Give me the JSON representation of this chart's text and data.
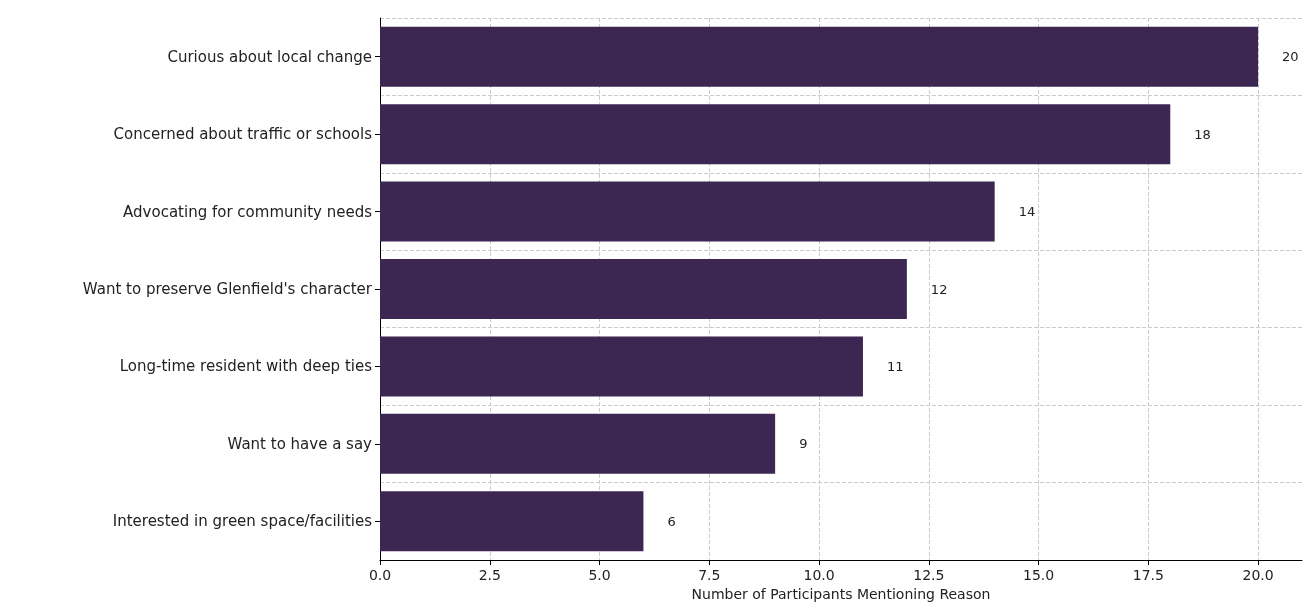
{
  "chart_data": {
    "type": "bar",
    "orientation": "horizontal",
    "xlabel": "Number of Participants Mentioning Reason",
    "categories": [
      "Curious about local change",
      "Concerned about traffic or schools",
      "Advocating for community needs",
      "Want to preserve Glenfield's character",
      "Long-time resident with deep ties",
      "Want to have a say",
      "Interested in green space/facilities"
    ],
    "values": [
      20,
      18,
      14,
      12,
      11,
      9,
      6
    ],
    "color": "#3b2752",
    "xlim": [
      0,
      21
    ],
    "xticks": [
      {
        "value": 0,
        "label": "0.0"
      },
      {
        "value": 2.5,
        "label": "2.5"
      },
      {
        "value": 5,
        "label": "5.0"
      },
      {
        "value": 7.5,
        "label": "7.5"
      },
      {
        "value": 10,
        "label": "10.0"
      },
      {
        "value": 12.5,
        "label": "12.5"
      },
      {
        "value": 15,
        "label": "15.0"
      },
      {
        "value": 17.5,
        "label": "17.5"
      },
      {
        "value": 20,
        "label": "20.0"
      }
    ],
    "grid": true,
    "line_style": "dashed",
    "data_labels": true
  }
}
